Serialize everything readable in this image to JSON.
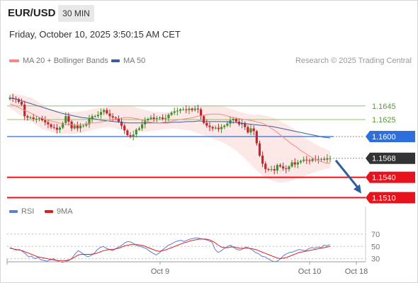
{
  "header": {
    "symbol": "EUR/USD",
    "timeframe": "30 MIN",
    "timestamp": "Friday, October 10, 2025 3:50:15 AM CET"
  },
  "legend": {
    "ma20_label": "MA 20 + Bollinger Bands",
    "ma50_label": "MA 50",
    "credit": "Research © 2025 Trading Central",
    "rsi_label": "RSI",
    "rsi_ma_label": "9MA"
  },
  "colors": {
    "ma20": "#f48888",
    "bollinger_fill": "#fde4e4",
    "ma50": "#3a5f9c",
    "candle_up": "#4a8a2e",
    "candle_down": "#c0262c",
    "resistance_green": "#8fc46a",
    "pivot_blue": "#2f6fdc",
    "support_red": "#e8121c",
    "last_price": "#333333",
    "arrow": "#2e5d9e",
    "rsi": "#5b7fd4",
    "rsi_ma": "#e02020"
  },
  "chart_data": [
    {
      "type": "candlestick",
      "title": "EUR/USD 30 MIN",
      "y_range": [
        1.1499,
        1.1676
      ],
      "x_ticks": [
        "Oct 9",
        "Oct 10",
        "Oct 18"
      ],
      "levels": [
        {
          "value": 1.1645,
          "label": "1.1645",
          "kind": "resistance"
        },
        {
          "value": 1.1625,
          "label": "1.1625",
          "kind": "resistance"
        },
        {
          "value": 1.16,
          "label": "1.1600",
          "kind": "pivot"
        },
        {
          "value": 1.1568,
          "label": "1.1568",
          "kind": "last"
        },
        {
          "value": 1.154,
          "label": "1.1540",
          "kind": "support"
        },
        {
          "value": 1.151,
          "label": "1.1510",
          "kind": "support"
        }
      ],
      "arrow": {
        "from": 1.1567,
        "to": 1.1512,
        "direction": "down"
      },
      "closes": [
        1.1657,
        1.1656,
        1.1655,
        1.1651,
        1.1647,
        1.163,
        1.1628,
        1.1628,
        1.1626,
        1.1626,
        1.1627,
        1.1624,
        1.1621,
        1.1618,
        1.1614,
        1.1613,
        1.161,
        1.1613,
        1.162,
        1.163,
        1.1622,
        1.1612,
        1.1616,
        1.1612,
        1.1616,
        1.1616,
        1.1618,
        1.1626,
        1.163,
        1.163,
        1.1632,
        1.1636,
        1.1639,
        1.1634,
        1.163,
        1.1628,
        1.1627,
        1.1622,
        1.1616,
        1.1609,
        1.1602,
        1.16,
        1.1603,
        1.161,
        1.1612,
        1.1618,
        1.1624,
        1.1626,
        1.1628,
        1.1626,
        1.1627,
        1.1628,
        1.1626,
        1.1627,
        1.1632,
        1.1635,
        1.1637,
        1.1638,
        1.164,
        1.164,
        1.1639,
        1.1641,
        1.1639,
        1.1641,
        1.164,
        1.163,
        1.162,
        1.1616,
        1.1614,
        1.1612,
        1.1613,
        1.1611,
        1.1614,
        1.1616,
        1.1619,
        1.1624,
        1.1626,
        1.1622,
        1.1618,
        1.162,
        1.1614,
        1.1606,
        1.1612,
        1.1608,
        1.159,
        1.1572,
        1.156,
        1.1552,
        1.1551,
        1.1552,
        1.155,
        1.1558,
        1.1556,
        1.1553,
        1.1552,
        1.1556,
        1.1562,
        1.1559,
        1.1562,
        1.1564,
        1.1566,
        1.1565,
        1.1564,
        1.1567,
        1.1566,
        1.1567,
        1.1567,
        1.1566,
        1.1568,
        1.1568
      ],
      "ma20": [
        1.1648,
        1.1646,
        1.1643,
        1.164,
        1.1637,
        1.1634,
        1.1631,
        1.1628,
        1.1626,
        1.1624,
        1.1622,
        1.1621,
        1.1619,
        1.1618,
        1.1618,
        1.1617,
        1.1617,
        1.1618,
        1.1619,
        1.162,
        1.162,
        1.1621,
        1.1622,
        1.1623,
        1.1625,
        1.1626,
        1.1627,
        1.1628,
        1.1628,
        1.1627,
        1.1626,
        1.1624,
        1.1622,
        1.1621,
        1.162,
        1.162,
        1.1621,
        1.1622,
        1.1623,
        1.1624,
        1.1625,
        1.1626,
        1.1627,
        1.1628,
        1.163,
        1.1631,
        1.1632,
        1.1633,
        1.1633,
        1.1633,
        1.1632,
        1.163,
        1.1628,
        1.1627,
        1.1626,
        1.1625,
        1.1624,
        1.1623,
        1.1621,
        1.162,
        1.1617,
        1.1613,
        1.1609,
        1.1604,
        1.1599,
        1.1594,
        1.1589,
        1.1585,
        1.158,
        1.1576,
        1.1572,
        1.1568,
        1.1565,
        1.1563,
        1.1561,
        1.1561
      ],
      "ma50": [
        1.1657,
        1.1655,
        1.1652,
        1.1649,
        1.1646,
        1.1643,
        1.164,
        1.1637,
        1.1634,
        1.1632,
        1.163,
        1.1628,
        1.1627,
        1.1626,
        1.1624,
        1.1623,
        1.1622,
        1.1621,
        1.162,
        1.162,
        1.162,
        1.162,
        1.162,
        1.162,
        1.162,
        1.1621,
        1.1621,
        1.1622,
        1.1622,
        1.1623,
        1.1622,
        1.1622,
        1.1622,
        1.1622,
        1.1621,
        1.162,
        1.1619,
        1.1618,
        1.1617,
        1.1616,
        1.1615,
        1.1613,
        1.1611,
        1.1609,
        1.1607,
        1.1605,
        1.1603,
        1.1601,
        1.1599,
        1.1598
      ],
      "bb_upper": [
        1.1663,
        1.1662,
        1.1661,
        1.1659,
        1.1657,
        1.1652,
        1.1647,
        1.1642,
        1.1639,
        1.1638,
        1.1637,
        1.1636,
        1.1636,
        1.1637,
        1.1638,
        1.164,
        1.1642,
        1.1643,
        1.1644,
        1.1645,
        1.1646,
        1.1646,
        1.1645,
        1.1644,
        1.1641,
        1.1639,
        1.1637,
        1.1636,
        1.1636,
        1.1636,
        1.1637,
        1.1638,
        1.164,
        1.1642,
        1.1644,
        1.1645,
        1.1646,
        1.1646,
        1.1646,
        1.1645,
        1.1643,
        1.164,
        1.1637,
        1.1635,
        1.1633,
        1.1632,
        1.1632,
        1.1631,
        1.1629,
        1.1626,
        1.1622,
        1.1618,
        1.1613,
        1.1607,
        1.1601,
        1.1595,
        1.159,
        1.1586,
        1.1582,
        1.1579
      ],
      "bb_lower": [
        1.1641,
        1.1637,
        1.1631,
        1.1626,
        1.1621,
        1.1616,
        1.1611,
        1.1608,
        1.1606,
        1.1605,
        1.1604,
        1.1604,
        1.1604,
        1.1605,
        1.1607,
        1.1609,
        1.1611,
        1.1613,
        1.1614,
        1.1613,
        1.1611,
        1.1609,
        1.1608,
        1.1607,
        1.1607,
        1.1607,
        1.1608,
        1.1609,
        1.161,
        1.1611,
        1.1612,
        1.1611,
        1.161,
        1.1609,
        1.1607,
        1.1604,
        1.1601,
        1.1598,
        1.1595,
        1.1592,
        1.1588,
        1.1583,
        1.1577,
        1.157,
        1.1562,
        1.1554,
        1.1546,
        1.154,
        1.1536,
        1.1533,
        1.1532,
        1.1533,
        1.1535,
        1.1538,
        1.1541,
        1.1544,
        1.1547,
        1.155,
        1.1552,
        1.1553
      ]
    },
    {
      "type": "line",
      "title": "RSI",
      "y_range": [
        18,
        78
      ],
      "y_ticks": [
        70,
        50,
        30
      ],
      "rsi": [
        48,
        46,
        44,
        45,
        42,
        38,
        33,
        34,
        30,
        32,
        28,
        27,
        26,
        28,
        30,
        27,
        25,
        24,
        26,
        27,
        31,
        38,
        43,
        40,
        36,
        33,
        35,
        38,
        44,
        48,
        50,
        47,
        45,
        43,
        46,
        49,
        52,
        56,
        58,
        57,
        54,
        51,
        50,
        48,
        46,
        42,
        39,
        36,
        39,
        44,
        48,
        52,
        54,
        57,
        59,
        60,
        58,
        60,
        62,
        63,
        64,
        63,
        62,
        61,
        59,
        57,
        45,
        40,
        43,
        47,
        50,
        52,
        48,
        45,
        44,
        46,
        49,
        47,
        44,
        40,
        38,
        34,
        33,
        30,
        27,
        25,
        26,
        30,
        35,
        38,
        40,
        41,
        43,
        45,
        44,
        43,
        46,
        48,
        47,
        49,
        48,
        52,
        51,
        53
      ],
      "rsi_ma": [
        47,
        46,
        45,
        44,
        43,
        41,
        39,
        37,
        35,
        33,
        32,
        31,
        30,
        29,
        28,
        27,
        27,
        27,
        27,
        28,
        30,
        33,
        36,
        37,
        37,
        37,
        37,
        38,
        39,
        41,
        43,
        44,
        45,
        45,
        46,
        47,
        49,
        51,
        52,
        53,
        53,
        53,
        52,
        51,
        49,
        47,
        45,
        43,
        42,
        43,
        44,
        46,
        48,
        50,
        52,
        54,
        56,
        57,
        59,
        60,
        61,
        62,
        62,
        62,
        61,
        59,
        56,
        52,
        49,
        48,
        48,
        49,
        49,
        48,
        47,
        47,
        47,
        47,
        46,
        45,
        43,
        41,
        39,
        37,
        35,
        33,
        31,
        30,
        31,
        32,
        34,
        36,
        38,
        40,
        41,
        42,
        43,
        44,
        45,
        46,
        47,
        48,
        49,
        50
      ]
    }
  ]
}
